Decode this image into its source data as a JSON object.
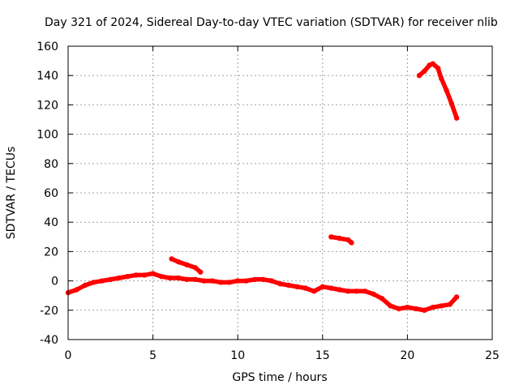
{
  "chart_data": {
    "type": "line",
    "title": "Day 321 of 2024, Sidereal Day-to-day VTEC variation (SDTVAR) for receiver nlib",
    "xlabel": "GPS time / hours",
    "ylabel": "SDTVAR / TECUs",
    "xlim": [
      0,
      25
    ],
    "ylim": [
      -40,
      160
    ],
    "xticks": [
      "0",
      "5",
      "10",
      "15",
      "20",
      "25"
    ],
    "yticks": [
      "-40",
      "-20",
      "0",
      "20",
      "40",
      "60",
      "80",
      "100",
      "120",
      "140",
      "160"
    ],
    "grid": true,
    "color": "#ff0000",
    "series": [
      {
        "name": "main",
        "x": [
          0,
          0.5,
          1,
          1.5,
          2,
          2.5,
          3,
          3.5,
          4,
          4.5,
          5,
          5.5,
          6,
          6.5,
          7,
          7.5,
          8,
          8.5,
          9,
          9.5,
          10,
          10.5,
          11,
          11.5,
          12,
          12.5,
          13,
          13.5,
          14,
          14.5,
          15,
          15.5,
          16,
          16.5,
          17,
          17.5,
          18,
          18.5,
          19,
          19.5,
          20,
          20.5,
          21,
          21.5,
          22,
          22.5,
          22.9
        ],
        "y": [
          -8,
          -6,
          -3,
          -1,
          0,
          1,
          2,
          3,
          4,
          4,
          5,
          3,
          2,
          2,
          1,
          1,
          0,
          0,
          -1,
          -1,
          0,
          0,
          1,
          1,
          0,
          -2,
          -3,
          -4,
          -5,
          -7,
          -4,
          -5,
          -6,
          -7,
          -7,
          -7,
          -9,
          -12,
          -17,
          -19,
          -18,
          -19,
          -20,
          -18,
          -17,
          -16,
          -11
        ]
      },
      {
        "name": "seg-6h",
        "x": [
          6.1,
          6.5,
          7,
          7.5,
          7.8
        ],
        "y": [
          15,
          13,
          11,
          9,
          6
        ]
      },
      {
        "name": "seg-15h",
        "x": [
          15.5,
          16,
          16.5,
          16.7
        ],
        "y": [
          30,
          29,
          28,
          26
        ]
      },
      {
        "name": "seg-21h",
        "x": [
          20.7,
          21,
          21.3,
          21.5,
          21.8,
          22,
          22.3,
          22.6,
          22.9
        ],
        "y": [
          140,
          143,
          147,
          148,
          145,
          138,
          130,
          121,
          111
        ]
      }
    ]
  }
}
